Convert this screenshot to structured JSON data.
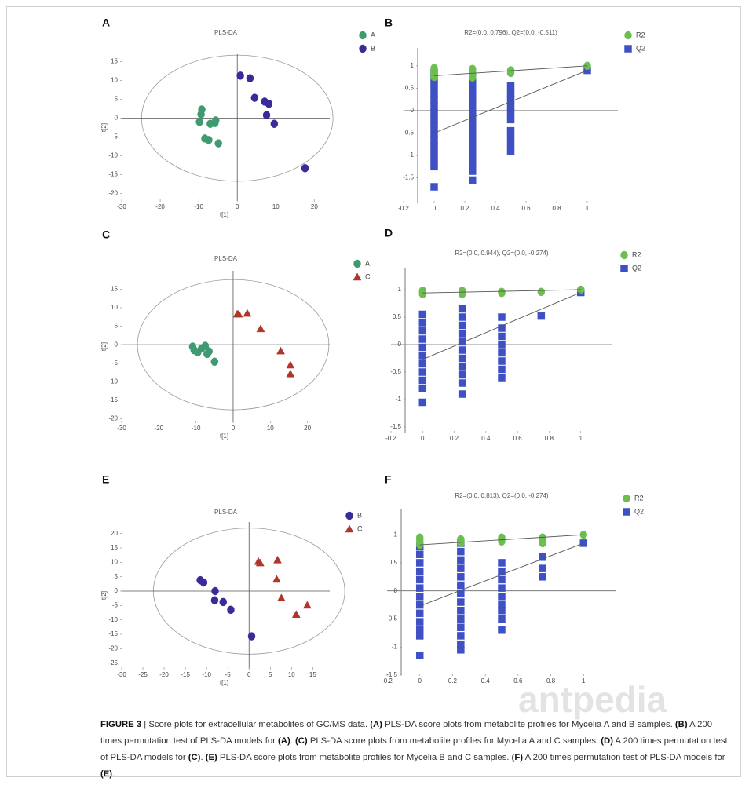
{
  "chart_data": [
    {
      "panel": "A",
      "type": "scatter",
      "title": "PLS-DA",
      "xlabel": "t[1]",
      "ylabel": "t[2]",
      "ellipse": true,
      "xlim": [
        -30,
        24
      ],
      "ylim": [
        -22,
        17
      ],
      "xticks": [
        -30,
        -20,
        -10,
        0,
        10,
        20
      ],
      "yticks": [
        15,
        10,
        5,
        0,
        -5,
        -10,
        -15,
        -20
      ],
      "series": [
        {
          "name": "A",
          "color": "#3f9a72",
          "marker": "circle",
          "x": [
            -9.2,
            -9.4,
            -9.8,
            -7,
            -5.8,
            -5.6,
            -8.4,
            -7.4,
            -4.9
          ],
          "values": [
            2.3,
            1.0,
            -1.0,
            -1.5,
            -1.3,
            -0.6,
            -5.4,
            -5.8,
            -6.7
          ]
        },
        {
          "name": "B",
          "color": "#3a2c98",
          "marker": "circle",
          "x": [
            0.8,
            3.3,
            4.5,
            7.1,
            8.2,
            7.6,
            9.6,
            17.6
          ],
          "values": [
            11.3,
            10.6,
            5.4,
            4.4,
            3.8,
            0.8,
            -1.5,
            -13.3
          ]
        }
      ]
    },
    {
      "panel": "B",
      "type": "scatter",
      "title": "R2=(0.0, 0.796), Q2=(0.0, -0.511)",
      "xlim": [
        -0.2,
        1.2
      ],
      "ylim": [
        -2.05,
        1.4
      ],
      "xticks": [
        -0.2,
        0,
        0.2,
        0.4,
        0.6,
        0.8,
        1
      ],
      "yticks": [
        1,
        0.5,
        0,
        -0.5,
        -1,
        -1.5
      ],
      "series": [
        {
          "name": "R2",
          "color": "#6cbf4e",
          "marker": "circle",
          "x": [
            0,
            0,
            0,
            0,
            0,
            0.25,
            0.25,
            0.25,
            0.25,
            0.25,
            0.5,
            0.5,
            0.5,
            1
          ],
          "values": [
            0.95,
            0.9,
            0.85,
            0.8,
            0.75,
            0.93,
            0.88,
            0.83,
            0.78,
            0.74,
            0.9,
            0.87,
            0.84,
            1.0
          ]
        },
        {
          "name": "Q2",
          "color": "#3f50c4",
          "marker": "square",
          "x": [
            0,
            0,
            0,
            0,
            0,
            0,
            0,
            0,
            0,
            0,
            0,
            0,
            0,
            0,
            0,
            0,
            0.25,
            0.25,
            0.25,
            0.25,
            0.25,
            0.25,
            0.25,
            0.25,
            0.25,
            0.25,
            0.25,
            0.25,
            0.25,
            0.25,
            0.25,
            0.25,
            0.5,
            0.5,
            0.5,
            0.5,
            0.5,
            0.5,
            0.5,
            0.5,
            0.5,
            0.5,
            1
          ],
          "values": [
            0.85,
            0.7,
            0.55,
            0.4,
            0.25,
            0.1,
            -0.05,
            -0.2,
            -0.35,
            -0.5,
            -0.65,
            -0.8,
            -0.95,
            -1.1,
            -1.25,
            -1.7,
            0.75,
            0.6,
            0.45,
            0.3,
            0.15,
            0,
            -0.15,
            -0.3,
            -0.45,
            -0.6,
            -0.75,
            -0.9,
            -1.05,
            -1.2,
            -1.35,
            -1.55,
            0.55,
            0.4,
            0.25,
            0.1,
            -0.05,
            -0.2,
            -0.45,
            -0.6,
            -0.75,
            -0.9,
            0.9
          ]
        }
      ],
      "fit_lines": [
        {
          "color": "#555555",
          "x": [
            0,
            1
          ],
          "values": [
            0.78,
            1.0
          ]
        },
        {
          "color": "#555555",
          "x": [
            0,
            1
          ],
          "values": [
            -0.5,
            0.9
          ]
        }
      ]
    },
    {
      "panel": "C",
      "type": "scatter",
      "title": "PLS-DA",
      "xlabel": "t[1]",
      "ylabel": "t[2]",
      "ellipse": true,
      "xlim": [
        -30,
        26
      ],
      "ylim": [
        -21,
        20
      ],
      "xticks": [
        -30,
        -20,
        -10,
        0,
        10,
        20
      ],
      "yticks": [
        15,
        10,
        5,
        0,
        -5,
        -10,
        -15,
        -20
      ],
      "series": [
        {
          "name": "A",
          "color": "#3f9a72",
          "marker": "circle",
          "x": [
            -10.9,
            -10.5,
            -9.5,
            -8.5,
            -7.5,
            -7,
            -6.5,
            -5
          ],
          "values": [
            -0.5,
            -1.5,
            -2,
            -1,
            -0.3,
            -2.5,
            -1.8,
            -4.6
          ]
        },
        {
          "name": "C",
          "color": "#b0362a",
          "marker": "triangle",
          "x": [
            1.1,
            1.5,
            3.8,
            7.4,
            12.8,
            15.4,
            15.4
          ],
          "values": [
            8.3,
            8.3,
            8.5,
            4.3,
            -1.7,
            -5.5,
            -7.9
          ]
        }
      ]
    },
    {
      "panel": "D",
      "type": "scatter",
      "title": "R2=(0.0, 0.944), Q2=(0.0, -0.274)",
      "xlim": [
        -0.2,
        1.2
      ],
      "ylim": [
        -1.6,
        1.4
      ],
      "xticks": [
        -0.2,
        0,
        0.2,
        0.4,
        0.6,
        0.8,
        1
      ],
      "yticks": [
        1,
        0.5,
        0,
        -0.5,
        -1,
        -1.5
      ],
      "series": [
        {
          "name": "R2",
          "color": "#6cbf4e",
          "marker": "circle",
          "x": [
            0,
            0,
            0,
            0.25,
            0.25,
            0.25,
            0.5,
            0.5,
            0.75,
            1
          ],
          "values": [
            0.98,
            0.95,
            0.92,
            0.98,
            0.95,
            0.92,
            0.96,
            0.94,
            0.96,
            1.0
          ]
        },
        {
          "name": "Q2",
          "color": "#3f50c4",
          "marker": "square",
          "x": [
            0,
            0,
            0,
            0,
            0,
            0,
            0,
            0,
            0,
            0,
            0,
            0.25,
            0.25,
            0.25,
            0.25,
            0.25,
            0.25,
            0.25,
            0.25,
            0.25,
            0.25,
            0.25,
            0.5,
            0.5,
            0.5,
            0.5,
            0.5,
            0.5,
            0.5,
            0.5,
            0.75,
            1
          ],
          "values": [
            0.55,
            0.4,
            0.25,
            0.1,
            -0.05,
            -0.2,
            -0.35,
            -0.5,
            -0.65,
            -0.8,
            -1.05,
            0.65,
            0.5,
            0.35,
            0.2,
            0.05,
            -0.1,
            -0.25,
            -0.4,
            -0.55,
            -0.7,
            -0.9,
            0.5,
            0.3,
            0.15,
            0,
            -0.15,
            -0.3,
            -0.45,
            -0.6,
            0.52,
            0.95
          ]
        }
      ],
      "fit_lines": [
        {
          "color": "#555555",
          "x": [
            0,
            1
          ],
          "values": [
            0.94,
            1.0
          ]
        },
        {
          "color": "#555555",
          "x": [
            0,
            1
          ],
          "values": [
            -0.27,
            0.95
          ]
        }
      ]
    },
    {
      "panel": "E",
      "type": "scatter",
      "title": "PLS-DA",
      "xlabel": "t[1]",
      "ylabel": "t[2]",
      "ellipse": true,
      "xlim": [
        -30,
        19
      ],
      "ylim": [
        -27,
        24
      ],
      "xticks": [
        -30,
        -25,
        -20,
        -15,
        -10,
        -5,
        0,
        5,
        10,
        15
      ],
      "yticks": [
        20,
        15,
        10,
        5,
        0,
        -5,
        -10,
        -15,
        -20,
        -25
      ],
      "series": [
        {
          "name": "B",
          "color": "#3a2c98",
          "marker": "circle",
          "x": [
            -11.5,
            -10.7,
            -8,
            -8.1,
            -6.1,
            -4.3,
            0.6
          ],
          "values": [
            3.8,
            3,
            0,
            -3.2,
            -3.8,
            -6.5,
            -15.7
          ]
        },
        {
          "name": "C",
          "color": "#b0362a",
          "marker": "triangle",
          "x": [
            2.2,
            2.6,
            6.7,
            6.5,
            7.6,
            13.7,
            11.1
          ],
          "values": [
            10.3,
            9.8,
            10.8,
            4.1,
            -2.4,
            -4.9,
            -8.1
          ]
        }
      ]
    },
    {
      "panel": "F",
      "type": "scatter",
      "title": "R2=(0.0, 0.813), Q2=(0.0, -0.274)",
      "xlim": [
        -0.2,
        1.2
      ],
      "ylim": [
        -1.5,
        1.45
      ],
      "xticks": [
        -0.2,
        0,
        0.2,
        0.4,
        0.6,
        0.8,
        1
      ],
      "yticks": [
        1,
        0.5,
        0,
        -0.5,
        -1,
        -1.5
      ],
      "series": [
        {
          "name": "R2",
          "color": "#6cbf4e",
          "marker": "circle",
          "x": [
            0,
            0,
            0,
            0,
            0.25,
            0.25,
            0.25,
            0.5,
            0.5,
            0.5,
            0.75,
            0.75,
            0.75,
            1
          ],
          "values": [
            0.95,
            0.9,
            0.85,
            0.82,
            0.92,
            0.88,
            0.85,
            0.95,
            0.92,
            0.88,
            0.95,
            0.9,
            0.85,
            1.0
          ]
        },
        {
          "name": "Q2",
          "color": "#3f50c4",
          "marker": "square",
          "x": [
            0,
            0,
            0,
            0,
            0,
            0,
            0,
            0,
            0,
            0,
            0,
            0,
            0,
            0.25,
            0.25,
            0.25,
            0.25,
            0.25,
            0.25,
            0.25,
            0.25,
            0.25,
            0.25,
            0.25,
            0.25,
            0.25,
            0.25,
            0.5,
            0.5,
            0.5,
            0.5,
            0.5,
            0.5,
            0.5,
            0.5,
            0.5,
            0.75,
            0.75,
            0.75,
            1
          ],
          "values": [
            0.8,
            0.65,
            0.5,
            0.35,
            0.2,
            0.05,
            -0.1,
            -0.25,
            -0.4,
            -0.55,
            -0.7,
            -0.8,
            -1.15,
            0.85,
            0.7,
            0.55,
            0.4,
            0.25,
            0.1,
            -0.05,
            -0.2,
            -0.35,
            -0.5,
            -0.65,
            -0.8,
            -0.95,
            -1.05,
            0.5,
            0.35,
            0.2,
            0.05,
            -0.1,
            -0.25,
            -0.35,
            -0.5,
            -0.7,
            0.6,
            0.4,
            0.25,
            0.85
          ]
        }
      ],
      "fit_lines": [
        {
          "color": "#555555",
          "x": [
            0,
            1
          ],
          "values": [
            0.82,
            1.0
          ]
        },
        {
          "color": "#555555",
          "x": [
            0,
            1
          ],
          "values": [
            -0.27,
            0.85
          ]
        }
      ]
    }
  ],
  "caption": [
    {
      "text": "FIGURE 3",
      "bold": true
    },
    {
      "text": " | Score plots for extracellular metabolites of GC/MS data. ",
      "bold": false
    },
    {
      "text": "(A)",
      "bold": true
    },
    {
      "text": " PLS-DA score plots from metabolite profiles for Mycelia A and B samples. ",
      "bold": false
    },
    {
      "text": "(B)",
      "bold": true
    },
    {
      "text": " A 200 times permutation test of PLS-DA models for ",
      "bold": false
    },
    {
      "text": "(A)",
      "bold": true
    },
    {
      "text": ". ",
      "bold": false
    },
    {
      "text": "(C)",
      "bold": true
    },
    {
      "text": " PLS-DA score plots from metabolite profiles for Mycelia A and C samples. ",
      "bold": false
    },
    {
      "text": "(D)",
      "bold": true
    },
    {
      "text": " A 200 times permutation test of PLS-DA models for ",
      "bold": false
    },
    {
      "text": "(C)",
      "bold": true
    },
    {
      "text": ". ",
      "bold": false
    },
    {
      "text": "(E)",
      "bold": true
    },
    {
      "text": " PLS-DA score plots from metabolite profiles for Mycelia B and C samples. ",
      "bold": false
    },
    {
      "text": "(F)",
      "bold": true
    },
    {
      "text": " A 200 times permutation test of PLS-DA models for ",
      "bold": false
    },
    {
      "text": "(E)",
      "bold": true
    },
    {
      "text": ".",
      "bold": false
    }
  ],
  "watermark": "antpedia"
}
